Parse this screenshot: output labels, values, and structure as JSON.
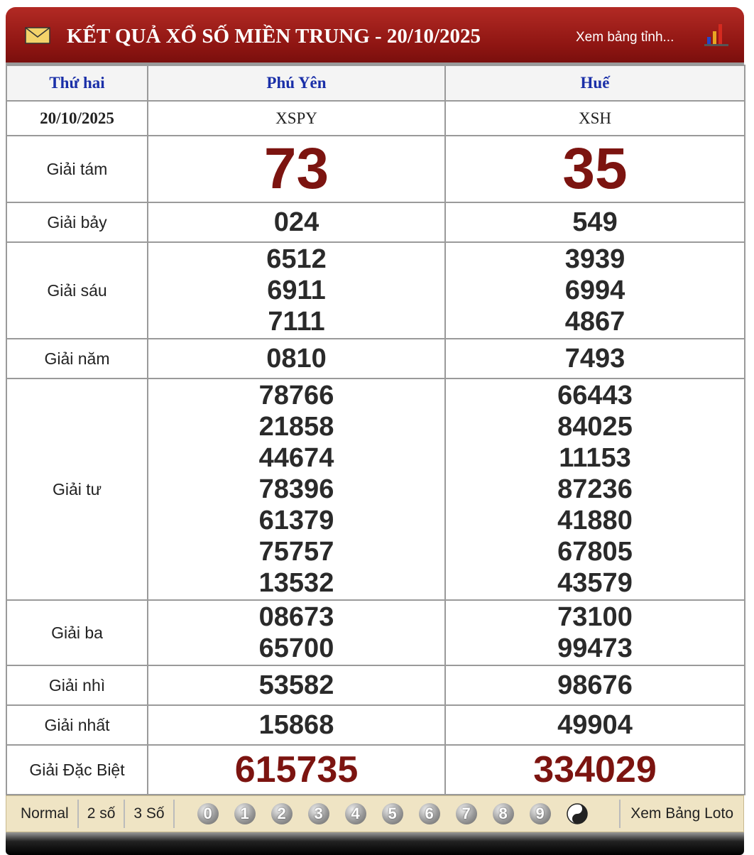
{
  "header": {
    "title": "KẾT QUẢ XỔ SỐ MIỀN TRUNG - 20/10/2025",
    "link": "Xem bảng tỉnh..."
  },
  "table": {
    "columns": [
      "Thứ hai",
      "Phú Yên",
      "Huế"
    ],
    "codes_row": [
      "20/10/2025",
      "XSPY",
      "XSH"
    ],
    "prizes": [
      {
        "label": "Giải tám",
        "values": [
          [
            "73"
          ],
          [
            "35"
          ]
        ]
      },
      {
        "label": "Giải bảy",
        "values": [
          [
            "024"
          ],
          [
            "549"
          ]
        ]
      },
      {
        "label": "Giải sáu",
        "values": [
          [
            "6512",
            "6911",
            "7111"
          ],
          [
            "3939",
            "6994",
            "4867"
          ]
        ]
      },
      {
        "label": "Giải năm",
        "values": [
          [
            "0810"
          ],
          [
            "7493"
          ]
        ]
      },
      {
        "label": "Giải tư",
        "values": [
          [
            "78766",
            "21858",
            "44674",
            "78396",
            "61379",
            "75757",
            "13532"
          ],
          [
            "66443",
            "84025",
            "11153",
            "87236",
            "41880",
            "67805",
            "43579"
          ]
        ]
      },
      {
        "label": "Giải ba",
        "values": [
          [
            "08673",
            "65700"
          ],
          [
            "73100",
            "99473"
          ]
        ]
      },
      {
        "label": "Giải nhì",
        "values": [
          [
            "53582"
          ],
          [
            "98676"
          ]
        ]
      },
      {
        "label": "Giải nhất",
        "values": [
          [
            "15868"
          ],
          [
            "49904"
          ]
        ]
      },
      {
        "label": "Giải Đặc Biệt",
        "values": [
          [
            "615735"
          ],
          [
            "334029"
          ]
        ]
      }
    ]
  },
  "footer": {
    "modes": [
      "Normal",
      "2 số",
      "3 Số"
    ],
    "digits": [
      "0",
      "1",
      "2",
      "3",
      "4",
      "5",
      "6",
      "7",
      "8",
      "9"
    ],
    "link": "Xem Bảng Loto"
  }
}
